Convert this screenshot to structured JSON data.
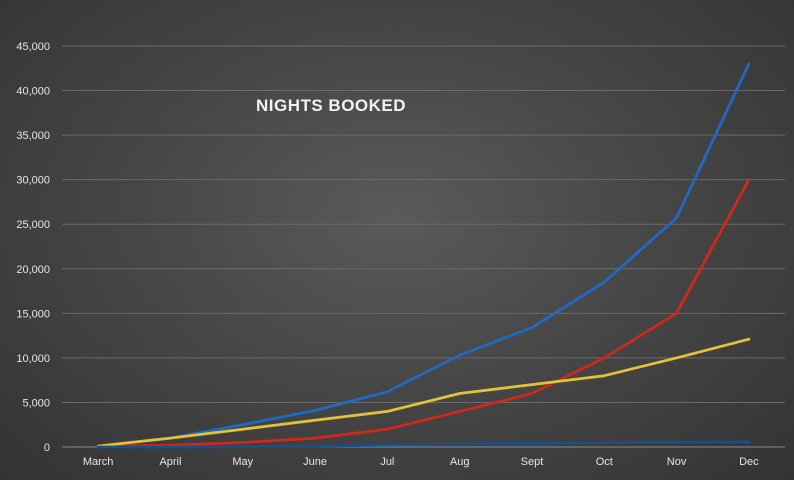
{
  "chart_data": {
    "type": "line",
    "title": "NIGHTS BOOKED",
    "xlabel": "",
    "ylabel": "",
    "categories": [
      "March",
      "April",
      "May",
      "June",
      "Jul",
      "Aug",
      "Sept",
      "Oct",
      "Nov",
      "Dec"
    ],
    "ylim": [
      0,
      45000
    ],
    "yticks": [
      0,
      5000,
      10000,
      15000,
      20000,
      25000,
      30000,
      35000,
      40000,
      45000
    ],
    "ytick_labels": [
      "0",
      "5,000",
      "10,000",
      "15,000",
      "20,000",
      "25,000",
      "30,000",
      "35,000",
      "40,000",
      "45,000"
    ],
    "grid": true,
    "legend": "none",
    "series": [
      {
        "color": "#1f6bc4",
        "values": [
          100,
          1000,
          2500,
          4100,
          6200,
          10300,
          13400,
          18500,
          25700,
          43000
        ]
      },
      {
        "color": "#d0281a",
        "values": [
          100,
          200,
          500,
          1000,
          2000,
          4000,
          6000,
          10000,
          15000,
          30000
        ]
      },
      {
        "color": "#e2c23a",
        "values": [
          100,
          1000,
          2000,
          3000,
          4000,
          6000,
          7000,
          8000,
          10000,
          12100
        ]
      },
      {
        "color": "#1a4f8a",
        "values": [
          0,
          0,
          50,
          100,
          200,
          300,
          400,
          500,
          550,
          600
        ]
      }
    ]
  }
}
